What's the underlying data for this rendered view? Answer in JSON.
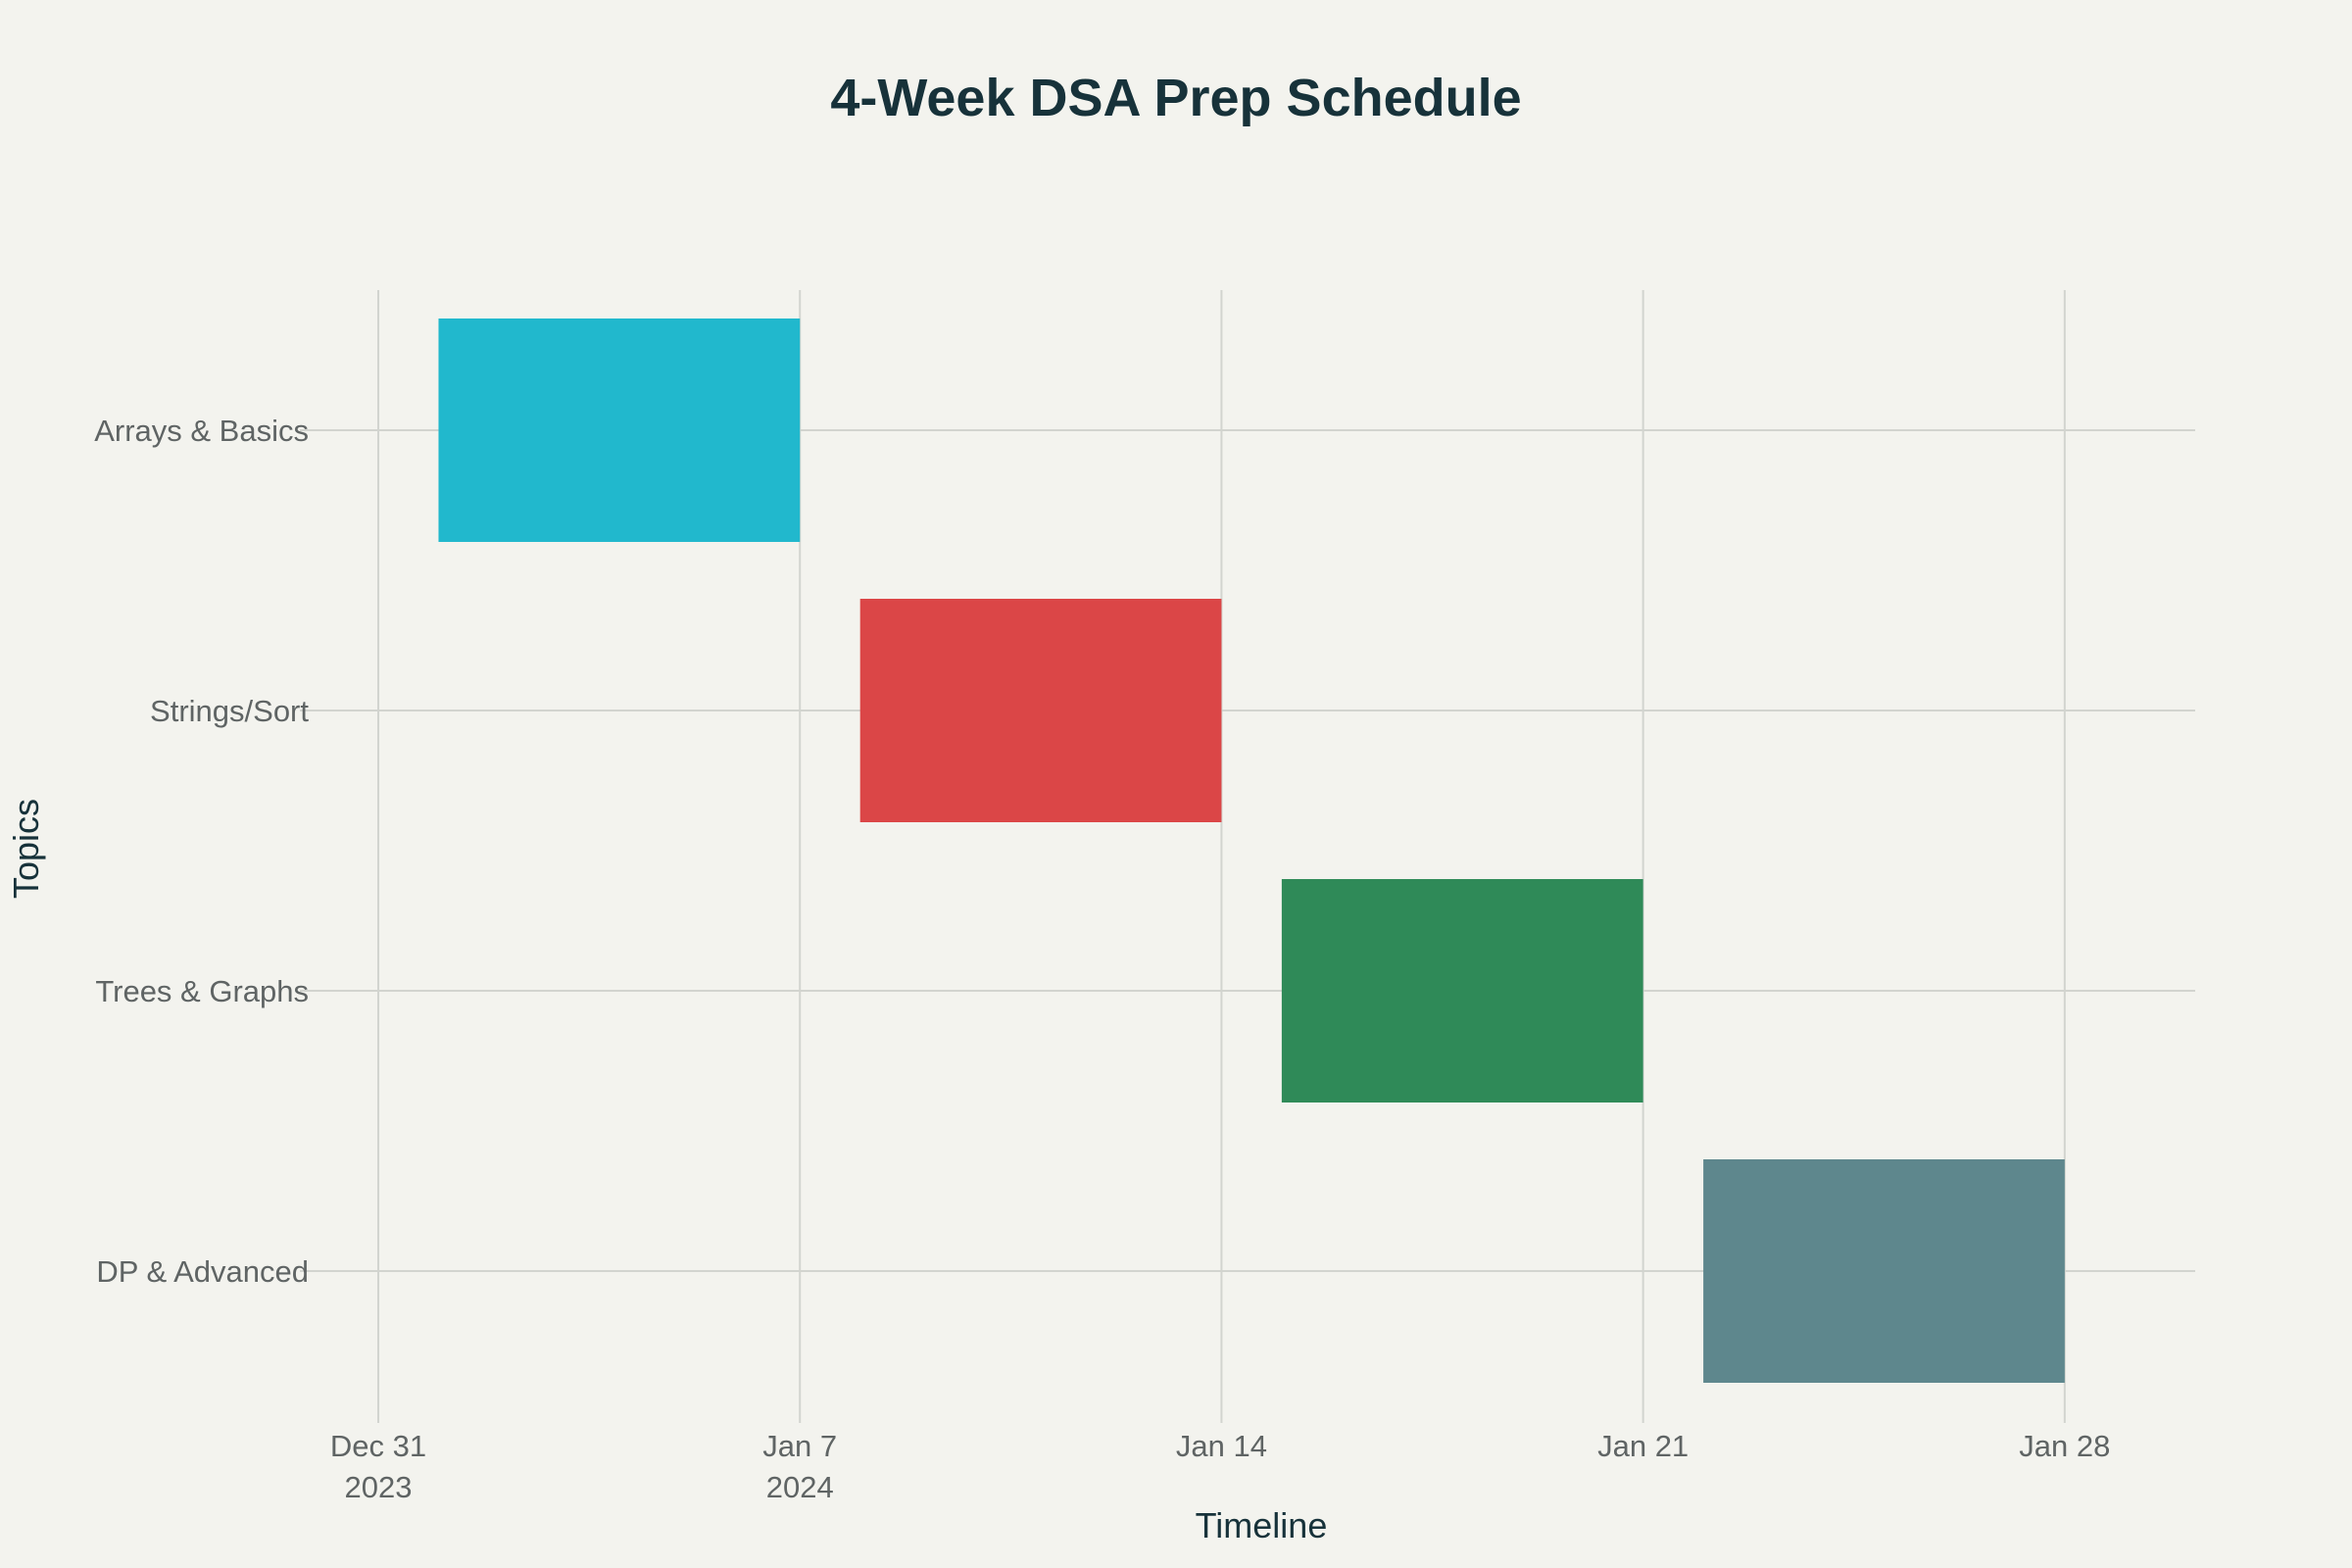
{
  "chart_data": {
    "type": "gantt",
    "title": "4-Week DSA Prep Schedule",
    "xlabel": "Timeline",
    "ylabel": "Topics",
    "x_range": [
      "2023-12-29T23:00",
      "2024-01-30T04:00"
    ],
    "x_ticks": [
      {
        "date": "2023-12-31",
        "label": "Dec 31",
        "sublabel": "2023"
      },
      {
        "date": "2024-01-07",
        "label": "Jan 7",
        "sublabel": "2024"
      },
      {
        "date": "2024-01-14",
        "label": "Jan 14",
        "sublabel": ""
      },
      {
        "date": "2024-01-21",
        "label": "Jan 21",
        "sublabel": ""
      },
      {
        "date": "2024-01-28",
        "label": "Jan 28",
        "sublabel": ""
      }
    ],
    "tasks": [
      {
        "name": "Arrays & Basics",
        "start": "2024-01-01",
        "end": "2024-01-07",
        "color": "#21b8cd"
      },
      {
        "name": "Strings/Sort",
        "start": "2024-01-08",
        "end": "2024-01-14",
        "color": "#db4647"
      },
      {
        "name": "Trees & Graphs",
        "start": "2024-01-15",
        "end": "2024-01-21",
        "color": "#2f8a58"
      },
      {
        "name": "DP & Advanced",
        "start": "2024-01-22",
        "end": "2024-01-28",
        "color": "#5e878d"
      }
    ],
    "grid": true,
    "legend": false
  }
}
